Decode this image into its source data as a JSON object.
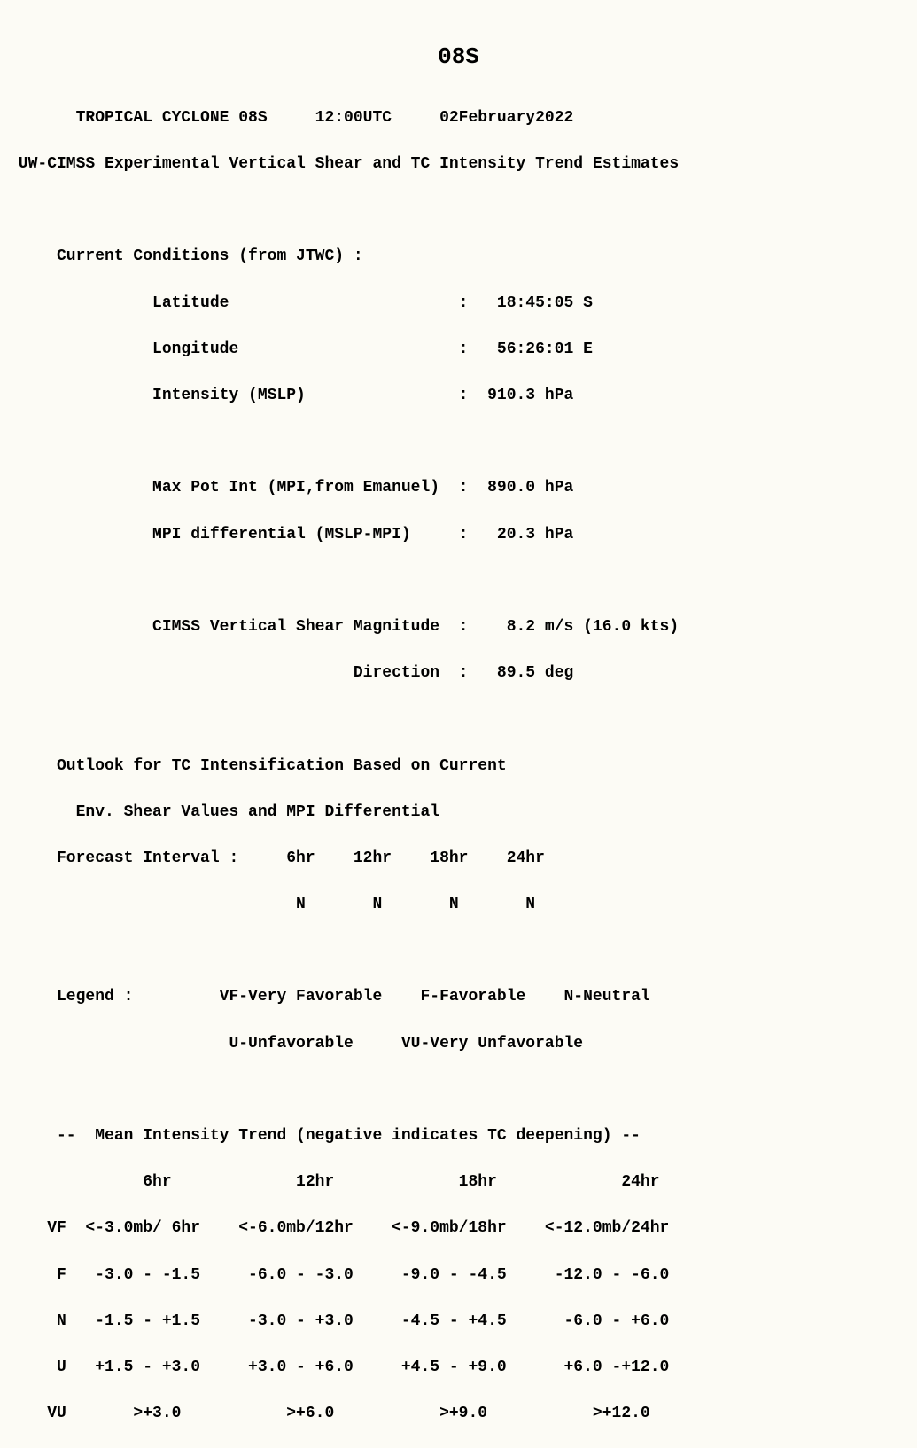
{
  "title": "08S",
  "header": {
    "name_line": "       TROPICAL CYCLONE 08S     12:00UTC     02February2022",
    "subtitle": " UW-CIMSS Experimental Vertical Shear and TC Intensity Trend Estimates"
  },
  "current": {
    "heading": "     Current Conditions (from JTWC) :",
    "lat": "               Latitude                        :   18:45:05 S",
    "lon": "               Longitude                       :   56:26:01 E",
    "mslp": "               Intensity (MSLP)                :  910.3 hPa",
    "mpi": "               Max Pot Int (MPI,from Emanuel)  :  890.0 hPa",
    "mpidiff": "               MPI differential (MSLP-MPI)     :   20.3 hPa",
    "shear_mag": "               CIMSS Vertical Shear Magnitude  :    8.2 m/s (16.0 kts)",
    "shear_dir": "                                    Direction  :   89.5 deg"
  },
  "outlook": {
    "l1": "     Outlook for TC Intensification Based on Current",
    "l2": "       Env. Shear Values and MPI Differential",
    "l3": "     Forecast Interval :     6hr    12hr    18hr    24hr",
    "l4": "                              N       N       N       N"
  },
  "legend": {
    "l1": "     Legend :         VF-Very Favorable    F-Favorable    N-Neutral",
    "l2": "                       U-Unfavorable     VU-Very Unfavorable"
  },
  "trend": {
    "heading": "     --  Mean Intensity Trend (negative indicates TC deepening) --",
    "hdr": "              6hr             12hr             18hr             24hr",
    "vf": "    VF  <-3.0mb/ 6hr    <-6.0mb/12hr    <-9.0mb/18hr    <-12.0mb/24hr",
    "f": "     F   -3.0 - -1.5     -6.0 - -3.0     -9.0 - -4.5     -12.0 - -6.0",
    "n": "     N   -1.5 - +1.5     -3.0 - +3.0     -4.5 - +4.5      -6.0 - +6.0",
    "u": "     U   +1.5 - +3.0     +3.0 - +6.0     +4.5 - +9.0      +6.0 -+12.0",
    "vu": "    VU       >+3.0           >+6.0           >+9.0           >+12.0"
  }
}
